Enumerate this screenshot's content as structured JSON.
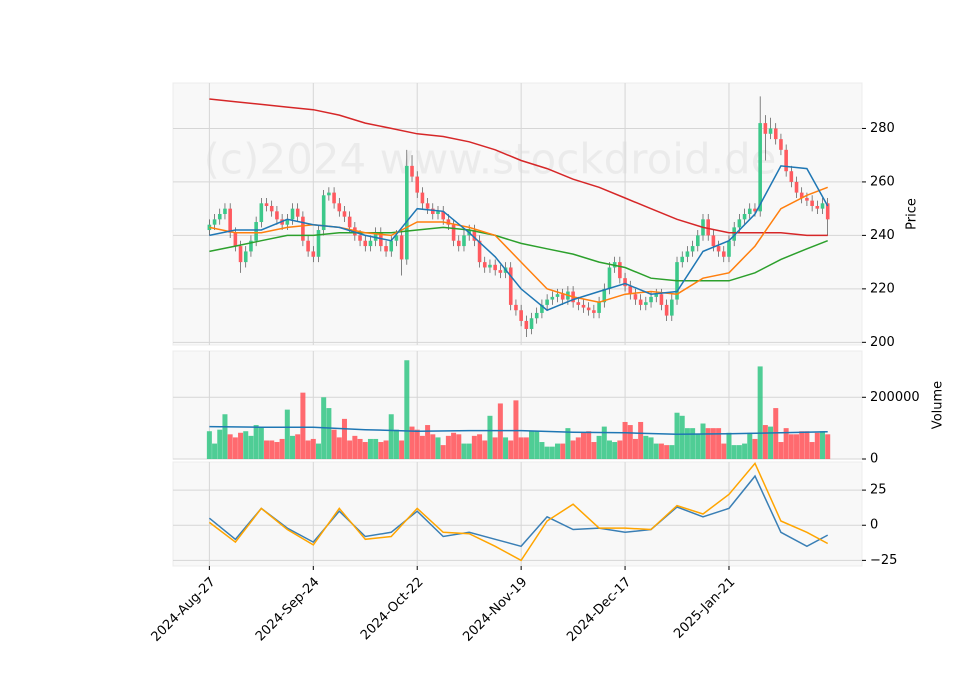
{
  "chart_data": [
    {
      "type": "candlestick",
      "watermark": "(c)2024 www.stockdroid.de",
      "y_label": "Price",
      "xlim": [
        -7,
        125.6
      ],
      "ylim": [
        199,
        297
      ],
      "yticks": [
        200,
        220,
        240,
        260,
        280
      ],
      "grid": true,
      "up_color": "#3cc88a",
      "down_color": "#ff5a5f",
      "open": [
        242,
        244,
        246,
        248,
        250,
        241,
        236,
        230,
        234,
        238,
        245,
        252,
        251,
        249,
        246,
        244,
        246,
        250,
        247,
        238,
        234,
        232,
        242,
        255,
        256,
        252,
        249,
        247,
        243,
        240,
        238,
        236,
        238,
        241,
        236,
        234,
        238,
        240,
        231,
        266,
        262,
        256,
        252,
        250,
        248,
        249,
        246,
        244,
        238,
        236,
        240,
        242,
        238,
        230,
        228,
        229,
        227,
        226,
        228,
        214,
        212,
        208,
        205,
        209,
        211,
        214,
        216,
        217,
        218,
        216,
        219,
        215,
        214,
        213,
        212,
        211,
        215,
        220,
        228,
        230,
        224,
        221,
        218,
        216,
        214,
        215,
        217,
        218,
        214,
        210,
        216,
        230,
        232,
        234,
        236,
        240,
        246,
        240,
        236,
        234,
        232,
        238,
        243,
        246,
        248,
        250,
        249,
        282,
        278,
        280,
        276,
        272,
        264,
        260,
        256,
        254,
        253,
        251,
        250,
        252
      ],
      "high": [
        246,
        248,
        250,
        252,
        252,
        243,
        238,
        236,
        240,
        247,
        254,
        254,
        253,
        251,
        248,
        248,
        252,
        252,
        249,
        240,
        236,
        244,
        257,
        258,
        258,
        254,
        251,
        249,
        245,
        242,
        240,
        240,
        243,
        243,
        238,
        240,
        242,
        242,
        272,
        270,
        264,
        258,
        254,
        252,
        251,
        251,
        248,
        246,
        240,
        242,
        244,
        244,
        240,
        232,
        231,
        231,
        229,
        230,
        230,
        216,
        214,
        210,
        211,
        213,
        216,
        218,
        219,
        220,
        220,
        221,
        221,
        217,
        216,
        215,
        214,
        217,
        222,
        230,
        232,
        232,
        226,
        223,
        220,
        218,
        217,
        219,
        220,
        220,
        216,
        218,
        232,
        234,
        236,
        238,
        242,
        248,
        248,
        242,
        238,
        236,
        240,
        245,
        248,
        250,
        252,
        252,
        292,
        285,
        284,
        282,
        278,
        274,
        266,
        262,
        258,
        256,
        255,
        253,
        254,
        254
      ],
      "low": [
        240,
        242,
        244,
        246,
        239,
        234,
        226,
        228,
        232,
        236,
        243,
        249,
        247,
        244,
        242,
        242,
        244,
        245,
        236,
        232,
        230,
        230,
        240,
        253,
        250,
        247,
        245,
        241,
        238,
        236,
        234,
        234,
        236,
        234,
        232,
        232,
        236,
        225,
        229,
        260,
        254,
        250,
        248,
        246,
        246,
        244,
        242,
        236,
        234,
        234,
        238,
        236,
        228,
        226,
        226,
        225,
        224,
        224,
        212,
        210,
        206,
        202,
        203,
        207,
        209,
        212,
        214,
        215,
        214,
        214,
        213,
        212,
        211,
        210,
        209,
        209,
        213,
        218,
        226,
        222,
        219,
        216,
        214,
        212,
        212,
        213,
        215,
        212,
        208,
        208,
        214,
        228,
        230,
        232,
        234,
        238,
        238,
        234,
        232,
        230,
        230,
        236,
        241,
        244,
        246,
        247,
        247,
        268,
        276,
        274,
        270,
        262,
        258,
        254,
        252,
        251,
        249,
        248,
        248,
        240
      ],
      "close": [
        244,
        246,
        248,
        250,
        241,
        236,
        230,
        234,
        238,
        245,
        252,
        251,
        249,
        246,
        244,
        246,
        250,
        247,
        238,
        234,
        232,
        242,
        255,
        256,
        252,
        249,
        247,
        243,
        240,
        238,
        236,
        238,
        241,
        236,
        234,
        238,
        240,
        231,
        266,
        262,
        256,
        252,
        250,
        248,
        249,
        246,
        244,
        238,
        236,
        240,
        242,
        238,
        230,
        228,
        229,
        227,
        226,
        228,
        214,
        212,
        208,
        205,
        209,
        211,
        214,
        216,
        217,
        218,
        216,
        219,
        215,
        214,
        213,
        212,
        211,
        215,
        220,
        228,
        230,
        224,
        221,
        218,
        216,
        214,
        215,
        217,
        218,
        214,
        210,
        216,
        230,
        232,
        234,
        236,
        240,
        246,
        240,
        236,
        234,
        232,
        238,
        243,
        246,
        248,
        250,
        249,
        282,
        278,
        280,
        276,
        272,
        264,
        260,
        256,
        254,
        253,
        251,
        250,
        252,
        246
      ],
      "lines": [
        {
          "color": "#d62728",
          "x": [
            0,
            5,
            10,
            15,
            20,
            25,
            30,
            35,
            40,
            45,
            50,
            55,
            60,
            65,
            70,
            75,
            80,
            85,
            90,
            95,
            100,
            105,
            110,
            115,
            119
          ],
          "values": [
            291,
            290,
            289,
            288,
            287,
            285,
            282,
            280,
            278,
            277,
            275,
            272,
            268,
            265,
            261,
            258,
            254,
            250,
            246,
            243,
            241,
            241,
            241,
            240,
            240
          ]
        },
        {
          "color": "#2ca02c",
          "x": [
            0,
            5,
            10,
            15,
            20,
            25,
            30,
            35,
            40,
            45,
            50,
            55,
            60,
            65,
            70,
            75,
            80,
            85,
            90,
            95,
            100,
            105,
            110,
            115,
            119
          ],
          "values": [
            234,
            236,
            238,
            240,
            240,
            241,
            241,
            241,
            242,
            243,
            242,
            240,
            237,
            235,
            233,
            230,
            228,
            224,
            223,
            223,
            223,
            226,
            231,
            235,
            238
          ]
        },
        {
          "color": "#ff7f0e",
          "x": [
            0,
            5,
            10,
            15,
            20,
            25,
            30,
            35,
            40,
            45,
            50,
            55,
            60,
            65,
            70,
            75,
            80,
            85,
            90,
            95,
            100,
            105,
            110,
            115,
            119
          ],
          "values": [
            243,
            241,
            241,
            243,
            244,
            243,
            241,
            240,
            245,
            245,
            243,
            240,
            230,
            220,
            217,
            215,
            218,
            219,
            218,
            224,
            226,
            236,
            250,
            255,
            258
          ]
        },
        {
          "color": "#1f77b4",
          "x": [
            0,
            5,
            10,
            15,
            20,
            25,
            30,
            35,
            40,
            45,
            50,
            55,
            60,
            65,
            70,
            75,
            80,
            85,
            90,
            95,
            100,
            105,
            110,
            115,
            119
          ],
          "values": [
            240,
            242,
            242,
            246,
            244,
            243,
            240,
            238,
            250,
            249,
            241,
            232,
            220,
            212,
            216,
            219,
            222,
            218,
            219,
            234,
            238,
            248,
            266,
            265,
            251
          ]
        }
      ]
    },
    {
      "type": "bar",
      "y_label": "Volume",
      "xlim": [
        -7,
        125.6
      ],
      "ylim": [
        0,
        350000
      ],
      "yticks": [
        0,
        200000
      ],
      "grid": true,
      "values": [
        90000,
        50000,
        95000,
        145000,
        80000,
        70000,
        85000,
        90000,
        75000,
        110000,
        105000,
        60000,
        60000,
        55000,
        65000,
        160000,
        75000,
        80000,
        215000,
        60000,
        65000,
        50000,
        200000,
        165000,
        95000,
        70000,
        130000,
        60000,
        75000,
        65000,
        55000,
        65000,
        65000,
        55000,
        60000,
        145000,
        95000,
        60000,
        320000,
        105000,
        95000,
        75000,
        110000,
        80000,
        70000,
        45000,
        75000,
        85000,
        80000,
        50000,
        50000,
        75000,
        80000,
        60000,
        140000,
        70000,
        180000,
        70000,
        60000,
        190000,
        70000,
        70000,
        90000,
        90000,
        55000,
        40000,
        40000,
        50000,
        50000,
        100000,
        60000,
        70000,
        85000,
        90000,
        55000,
        75000,
        105000,
        60000,
        55000,
        60000,
        120000,
        110000,
        65000,
        120000,
        75000,
        70000,
        50000,
        50000,
        45000,
        45000,
        150000,
        140000,
        100000,
        100000,
        80000,
        115000,
        100000,
        100000,
        100000,
        50000,
        85000,
        45000,
        45000,
        50000,
        85000,
        65000,
        300000,
        110000,
        105000,
        165000,
        55000,
        100000,
        80000,
        80000,
        90000,
        90000,
        55000,
        85000,
        90000,
        80000
      ],
      "lines": [
        {
          "color": "#1f77b4",
          "x": [
            0,
            10,
            20,
            30,
            40,
            50,
            60,
            70,
            80,
            90,
            100,
            110,
            119
          ],
          "values": [
            105000,
            103000,
            103000,
            95000,
            90000,
            92000,
            92000,
            87000,
            85000,
            80000,
            82000,
            85000,
            88000
          ]
        }
      ]
    },
    {
      "type": "line",
      "xlim": [
        -7,
        125.6
      ],
      "ylim": [
        -29,
        45
      ],
      "yticks": [
        {
          "value": -25,
          "label": "−25"
        },
        0,
        25
      ],
      "grid": true,
      "xticks": [
        {
          "value": 0,
          "label": "2024-Aug-27"
        },
        {
          "value": 20,
          "label": "2024-Sep-24"
        },
        {
          "value": 40,
          "label": "2024-Oct-22"
        },
        {
          "value": 60,
          "label": "2024-Nov-19"
        },
        {
          "value": 80,
          "label": "2024-Dec-17"
        },
        {
          "value": 100,
          "label": "2025-Jan-21"
        }
      ],
      "lines": [
        {
          "color": "#3a7fb5",
          "x": [
            0,
            5,
            10,
            15,
            20,
            25,
            30,
            35,
            40,
            45,
            50,
            55,
            60,
            65,
            70,
            75,
            80,
            85,
            90,
            95,
            100,
            105,
            110,
            115,
            119
          ],
          "values": [
            5,
            -10,
            12,
            -2,
            -12,
            10,
            -8,
            -5,
            10,
            -8,
            -5,
            -10,
            -15,
            6,
            -3,
            -2,
            -5,
            -3,
            13,
            6,
            12,
            35,
            -5,
            -15,
            -7
          ]
        },
        {
          "color": "#ffa500",
          "x": [
            0,
            5,
            10,
            15,
            20,
            25,
            30,
            35,
            40,
            45,
            50,
            55,
            60,
            65,
            70,
            75,
            80,
            85,
            90,
            95,
            100,
            105,
            110,
            115,
            119
          ],
          "values": [
            2,
            -12,
            12,
            -3,
            -14,
            12,
            -10,
            -8,
            12,
            -5,
            -6,
            -15,
            -25,
            3,
            15,
            -2,
            -2,
            -3,
            14,
            8,
            22,
            44,
            3,
            -5,
            -13
          ]
        }
      ]
    }
  ]
}
